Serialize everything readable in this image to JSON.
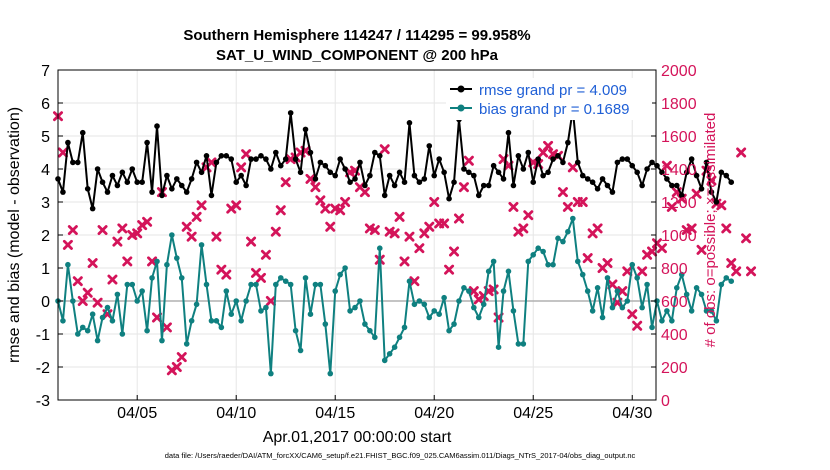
{
  "chart_data": {
    "type": "line",
    "title": "Southern Hemisphere 114247 / 114295 = 99.958%",
    "subtitle": "SAT_U_WIND_COMPONENT @ 200 hPa",
    "xlabel": "Apr.01,2017 00:00:00 start",
    "ylabel": "rmse and bias (model - observation)",
    "y2label": "# of obs: o=possible; ×=assimilated",
    "footnote": "data file: /Users/raeder/DAI/ATM_forcXX/CAM6_setup/f.e21.FHIST_BGC.f09_025.CAM6assim.011/Diags_NTrS_2017-04/obs_diag_output.nc",
    "xlim": [
      1,
      31.2
    ],
    "ylim": [
      -3,
      7
    ],
    "y2lim": [
      0,
      2000
    ],
    "xticks": [
      {
        "value": 5,
        "label": "04/05"
      },
      {
        "value": 10,
        "label": "04/10"
      },
      {
        "value": 15,
        "label": "04/15"
      },
      {
        "value": 20,
        "label": "04/20"
      },
      {
        "value": 25,
        "label": "04/25"
      },
      {
        "value": 30,
        "label": "04/30"
      }
    ],
    "yticks": [
      "-3",
      "-2",
      "-1",
      "0",
      "1",
      "2",
      "3",
      "4",
      "5",
      "6",
      "7"
    ],
    "y2ticks": [
      "0",
      "200",
      "400",
      "600",
      "800",
      "1000",
      "1200",
      "1400",
      "1600",
      "1800",
      "2000"
    ],
    "grid": true,
    "legend_position": "top-right",
    "x_start": 1.0,
    "x_step": 0.25,
    "series": [
      {
        "name": "rmse grand pr = 4.009",
        "color": "#000000",
        "axis": "left",
        "values": [
          3.7,
          3.3,
          4.8,
          4.2,
          4.2,
          5.1,
          3.4,
          2.8,
          4.0,
          3.6,
          3.3,
          3.8,
          3.5,
          3.9,
          3.6,
          4.0,
          3.6,
          3.6,
          4.8,
          3.3,
          5.3,
          3.2,
          3.8,
          3.4,
          3.7,
          3.5,
          3.3,
          3.7,
          4.2,
          3.9,
          4.4,
          3.2,
          4.2,
          4.4,
          4.4,
          4.3,
          3.6,
          3.8,
          3.5,
          4.3,
          4.3,
          4.4,
          4.3,
          4.0,
          4.5,
          4.1,
          4.3,
          5.7,
          4.3,
          3.9,
          5.2,
          4.5,
          3.7,
          4.2,
          4.1,
          3.9,
          3.8,
          4.3,
          4.0,
          3.6,
          3.7,
          4.2,
          3.5,
          3.8,
          4.5,
          4.4,
          3.2,
          3.8,
          3.5,
          3.9,
          3.6,
          5.4,
          3.8,
          3.6,
          3.7,
          4.7,
          3.8,
          4.3,
          3.9,
          3.1,
          3.6,
          5.5,
          4.0,
          3.9,
          3.8,
          3.2,
          3.5,
          3.5,
          4.1,
          3.9,
          3.7,
          5.1,
          3.5,
          4.4,
          4.0,
          4.5,
          3.6,
          4.3,
          3.8,
          3.9,
          4.3,
          4.4,
          4.2,
          4.8,
          5.8,
          4.2,
          3.8,
          3.7,
          3.6,
          3.4,
          3.7,
          3.5,
          3.3,
          4.2,
          4.3,
          4.3,
          4.1,
          3.9,
          3.5,
          4.0,
          4.2,
          4.1,
          3.9,
          3.7,
          3.5,
          3.5,
          3.2,
          3.9,
          4.3,
          3.8,
          3.4,
          4.2,
          3.3,
          3.0,
          3.9,
          3.8,
          3.6
        ]
      },
      {
        "name": "bias grand pr = 0.1689",
        "color": "#0f8080",
        "axis": "left",
        "values": [
          0.0,
          -0.6,
          1.1,
          0.0,
          -1.0,
          -0.8,
          -0.9,
          -0.4,
          -1.2,
          -0.5,
          -0.2,
          -0.6,
          0.2,
          -1.0,
          0.5,
          0.5,
          0.0,
          0.3,
          -0.9,
          0.7,
          1.2,
          -1.2,
          1.1,
          2.0,
          1.3,
          0.7,
          -1.3,
          -0.6,
          -0.1,
          1.7,
          0.5,
          -0.6,
          -0.6,
          -0.8,
          0.3,
          -0.4,
          0.0,
          -0.6,
          0.0,
          0.5,
          0.5,
          -0.3,
          -0.2,
          -2.2,
          0.5,
          0.7,
          0.6,
          0.5,
          -0.9,
          -1.5,
          0.7,
          -0.4,
          0.5,
          0.5,
          -0.7,
          -2.2,
          0.3,
          0.8,
          1.0,
          -0.3,
          -0.2,
          0.0,
          -0.7,
          -0.9,
          -1.1,
          1.6,
          -1.8,
          -1.6,
          -1.4,
          -1.1,
          -0.8,
          0.6,
          -0.1,
          0.0,
          -0.1,
          -0.5,
          -0.3,
          -0.4,
          0.1,
          -0.9,
          -0.7,
          0.0,
          0.4,
          0.3,
          -0.2,
          -0.5,
          -0.1,
          0.9,
          1.2,
          -1.4,
          0.3,
          0.9,
          -0.3,
          -1.3,
          -1.3,
          1.2,
          1.4,
          1.6,
          1.5,
          1.1,
          1.1,
          1.9,
          1.8,
          2.1,
          2.5,
          1.2,
          0.8,
          0.3,
          -0.3,
          0.4,
          -0.5,
          0.7,
          -0.2,
          0.3,
          -0.2,
          0.0,
          1.1,
          0.7,
          -0.2,
          0.5,
          -0.8,
          0.0,
          -0.6,
          -0.3,
          -0.6,
          0.4,
          0.8,
          0.2,
          -0.3,
          0.4,
          0.2,
          -0.3,
          -0.3,
          -0.6,
          0.5,
          0.7,
          0.6
        ]
      },
      {
        "name": "assimilated",
        "color": "#d4145a",
        "axis": "right",
        "marker": "x",
        "values": [
          1720,
          1500,
          940,
          1030,
          720,
          600,
          650,
          830,
          590,
          1030,
          520,
          730,
          960,
          1040,
          840,
          1000,
          1010,
          1060,
          1080,
          840,
          500,
          1260,
          440,
          180,
          200,
          260,
          1050,
          990,
          1110,
          1180,
          1410,
          1440,
          990,
          790,
          760,
          1160,
          1180,
          1410,
          1490,
          960,
          770,
          740,
          880,
          600,
          1020,
          1150,
          1320,
          1460,
          1470,
          1500,
          1510,
          1340,
          1290,
          1210,
          1160,
          1050,
          1160,
          1150,
          1200,
          1380,
          1390,
          1290,
          1260,
          1040,
          1030,
          850,
          1520,
          1020,
          1010,
          1110,
          840,
          990,
          720,
          920,
          1010,
          1050,
          1200,
          1070,
          1070,
          790,
          900,
          1100,
          1290,
          1450,
          660,
          610,
          630,
          660,
          670,
          500,
          1460,
          1420,
          1170,
          1020,
          1040,
          1120,
          1440,
          1430,
          1500,
          1540,
          1490,
          1480,
          1260,
          1170,
          1410,
          1200,
          1200,
          860,
          1010,
          1040,
          800,
          830,
          700,
          590,
          660,
          780,
          520,
          450,
          780,
          880,
          900,
          950,
          920,
          1420,
          1170,
          1260,
          1220,
          1030,
          1040,
          1250,
          910,
          1390,
          1330,
          1190,
          1180,
          1040,
          830,
          780,
          1500,
          980,
          780
        ]
      }
    ]
  }
}
